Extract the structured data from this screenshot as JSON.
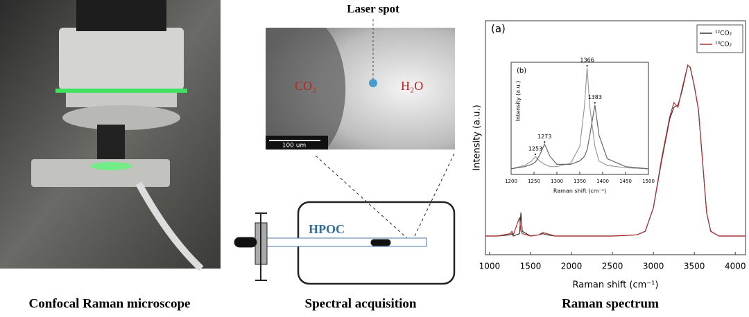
{
  "panels": [
    {
      "caption": "Confocal Raman microscope"
    },
    {
      "caption": "Spectral acquisition",
      "laser_label": "Laser spot",
      "left_phase": "CO₂",
      "right_phase": "H₂O",
      "scale_bar": "100 um",
      "cell_label": "HPOC"
    },
    {
      "caption": "Raman spectrum"
    }
  ],
  "chart_data": [
    {
      "type": "line",
      "panel_label": "(a)",
      "xlabel": "Raman shift (cm⁻¹)",
      "ylabel": "Intensity (a.u.)",
      "xlim": [
        950,
        4125
      ],
      "xticks": [
        1000,
        1500,
        2000,
        2500,
        3000,
        3500,
        4000
      ],
      "ylim": [
        0,
        100
      ],
      "legend": "upper right",
      "x": [
        950,
        1100,
        1250,
        1273,
        1290,
        1366,
        1383,
        1400,
        1500,
        1600,
        1650,
        1700,
        1800,
        2000,
        2500,
        2800,
        2900,
        3000,
        3100,
        3200,
        3250,
        3300,
        3350,
        3420,
        3450,
        3500,
        3550,
        3600,
        3650,
        3700,
        3800,
        4000,
        4125
      ],
      "series": [
        {
          "name": "¹²CO₂",
          "color": "#333333",
          "values": [
            8,
            8,
            8.5,
            9,
            8,
            9,
            18,
            10,
            8,
            8.5,
            9,
            8.5,
            8,
            8,
            8,
            8.5,
            10,
            20,
            40,
            58,
            63,
            64,
            70,
            81,
            80,
            72,
            62,
            40,
            18,
            10,
            8,
            8,
            8
          ]
        },
        {
          "name": "¹³CO₂",
          "color": "#b03030",
          "values": [
            8,
            8,
            9,
            10,
            8.5,
            16,
            10,
            9,
            8,
            8.5,
            9.5,
            9,
            8,
            8,
            8,
            8.5,
            10,
            20,
            41,
            59,
            65,
            63,
            71,
            81,
            80,
            72,
            62,
            40,
            18,
            10,
            8,
            8,
            8
          ]
        }
      ]
    },
    {
      "type": "line",
      "panel_label": "(b)",
      "xlabel": "Raman shift (cm⁻¹)",
      "ylabel": "Intensity (a.u.)",
      "xlim": [
        1200,
        1500
      ],
      "xticks": [
        1200,
        1250,
        1300,
        1350,
        1400,
        1450,
        1500
      ],
      "ylim": [
        0,
        100
      ],
      "peak_labels": [
        1253,
        1273,
        1366,
        1383
      ],
      "x": [
        1200,
        1230,
        1245,
        1253,
        1262,
        1273,
        1285,
        1300,
        1330,
        1350,
        1360,
        1366,
        1372,
        1383,
        1392,
        1410,
        1450,
        1500
      ],
      "series": [
        {
          "name": "¹³CO₂",
          "color": "#999999",
          "values": [
            5,
            8,
            12,
            16,
            12,
            9,
            7,
            7,
            10,
            25,
            60,
            95,
            60,
            25,
            12,
            8,
            6,
            5
          ]
        },
        {
          "name": "¹²CO₂",
          "color": "#666666",
          "values": [
            5,
            7,
            9,
            11,
            17,
            27,
            16,
            9,
            9,
            12,
            16,
            22,
            35,
            62,
            35,
            14,
            7,
            5
          ]
        }
      ]
    }
  ]
}
